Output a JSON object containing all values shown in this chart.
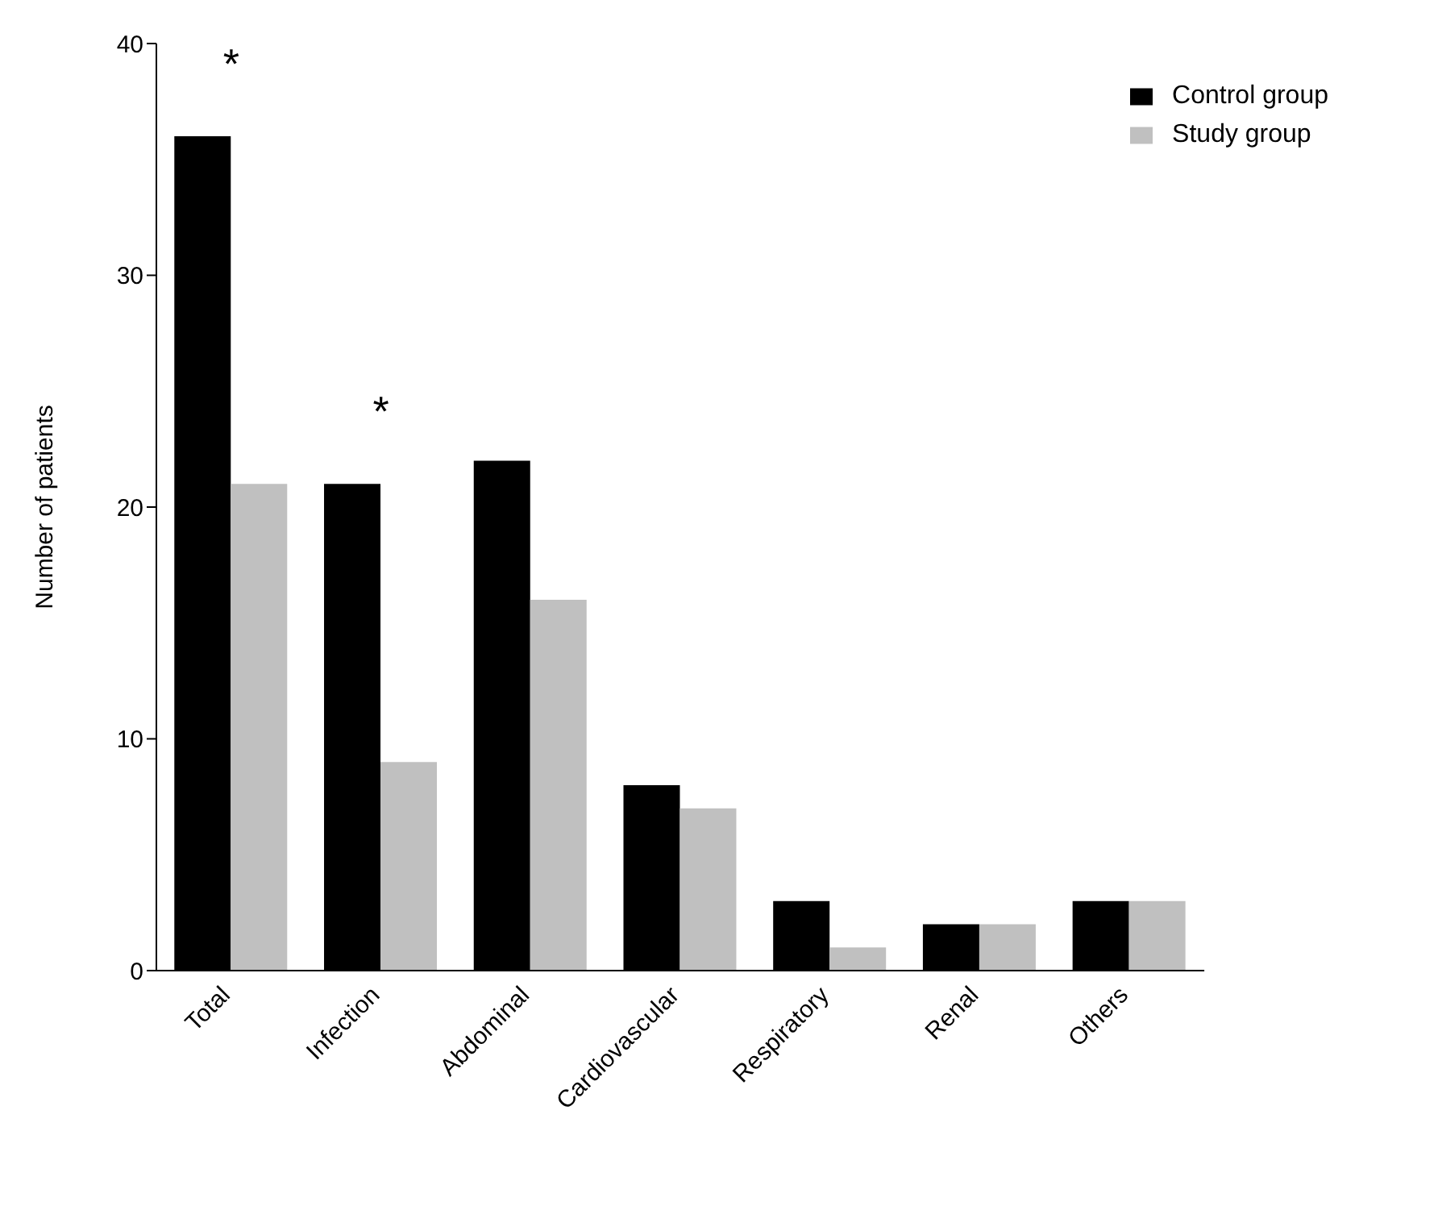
{
  "chart_data": {
    "type": "bar",
    "ylabel": "Number of patients",
    "categories": [
      "Total",
      "Infection",
      "Abdominal",
      "Cardiovascular",
      "Respiratory",
      "Renal",
      "Others"
    ],
    "series": [
      {
        "name": "Control group",
        "color": "#000000",
        "values": [
          36,
          21,
          22,
          8,
          3,
          2,
          3
        ]
      },
      {
        "name": "Study group",
        "color": "#c0c0c0",
        "values": [
          21,
          9,
          16,
          7,
          1,
          2,
          3
        ]
      }
    ],
    "ylim": [
      0,
      40
    ],
    "yticks": [
      0,
      10,
      20,
      30,
      40
    ],
    "grid": false,
    "legend": "top right",
    "annotations": [
      "*",
      "*"
    ]
  }
}
